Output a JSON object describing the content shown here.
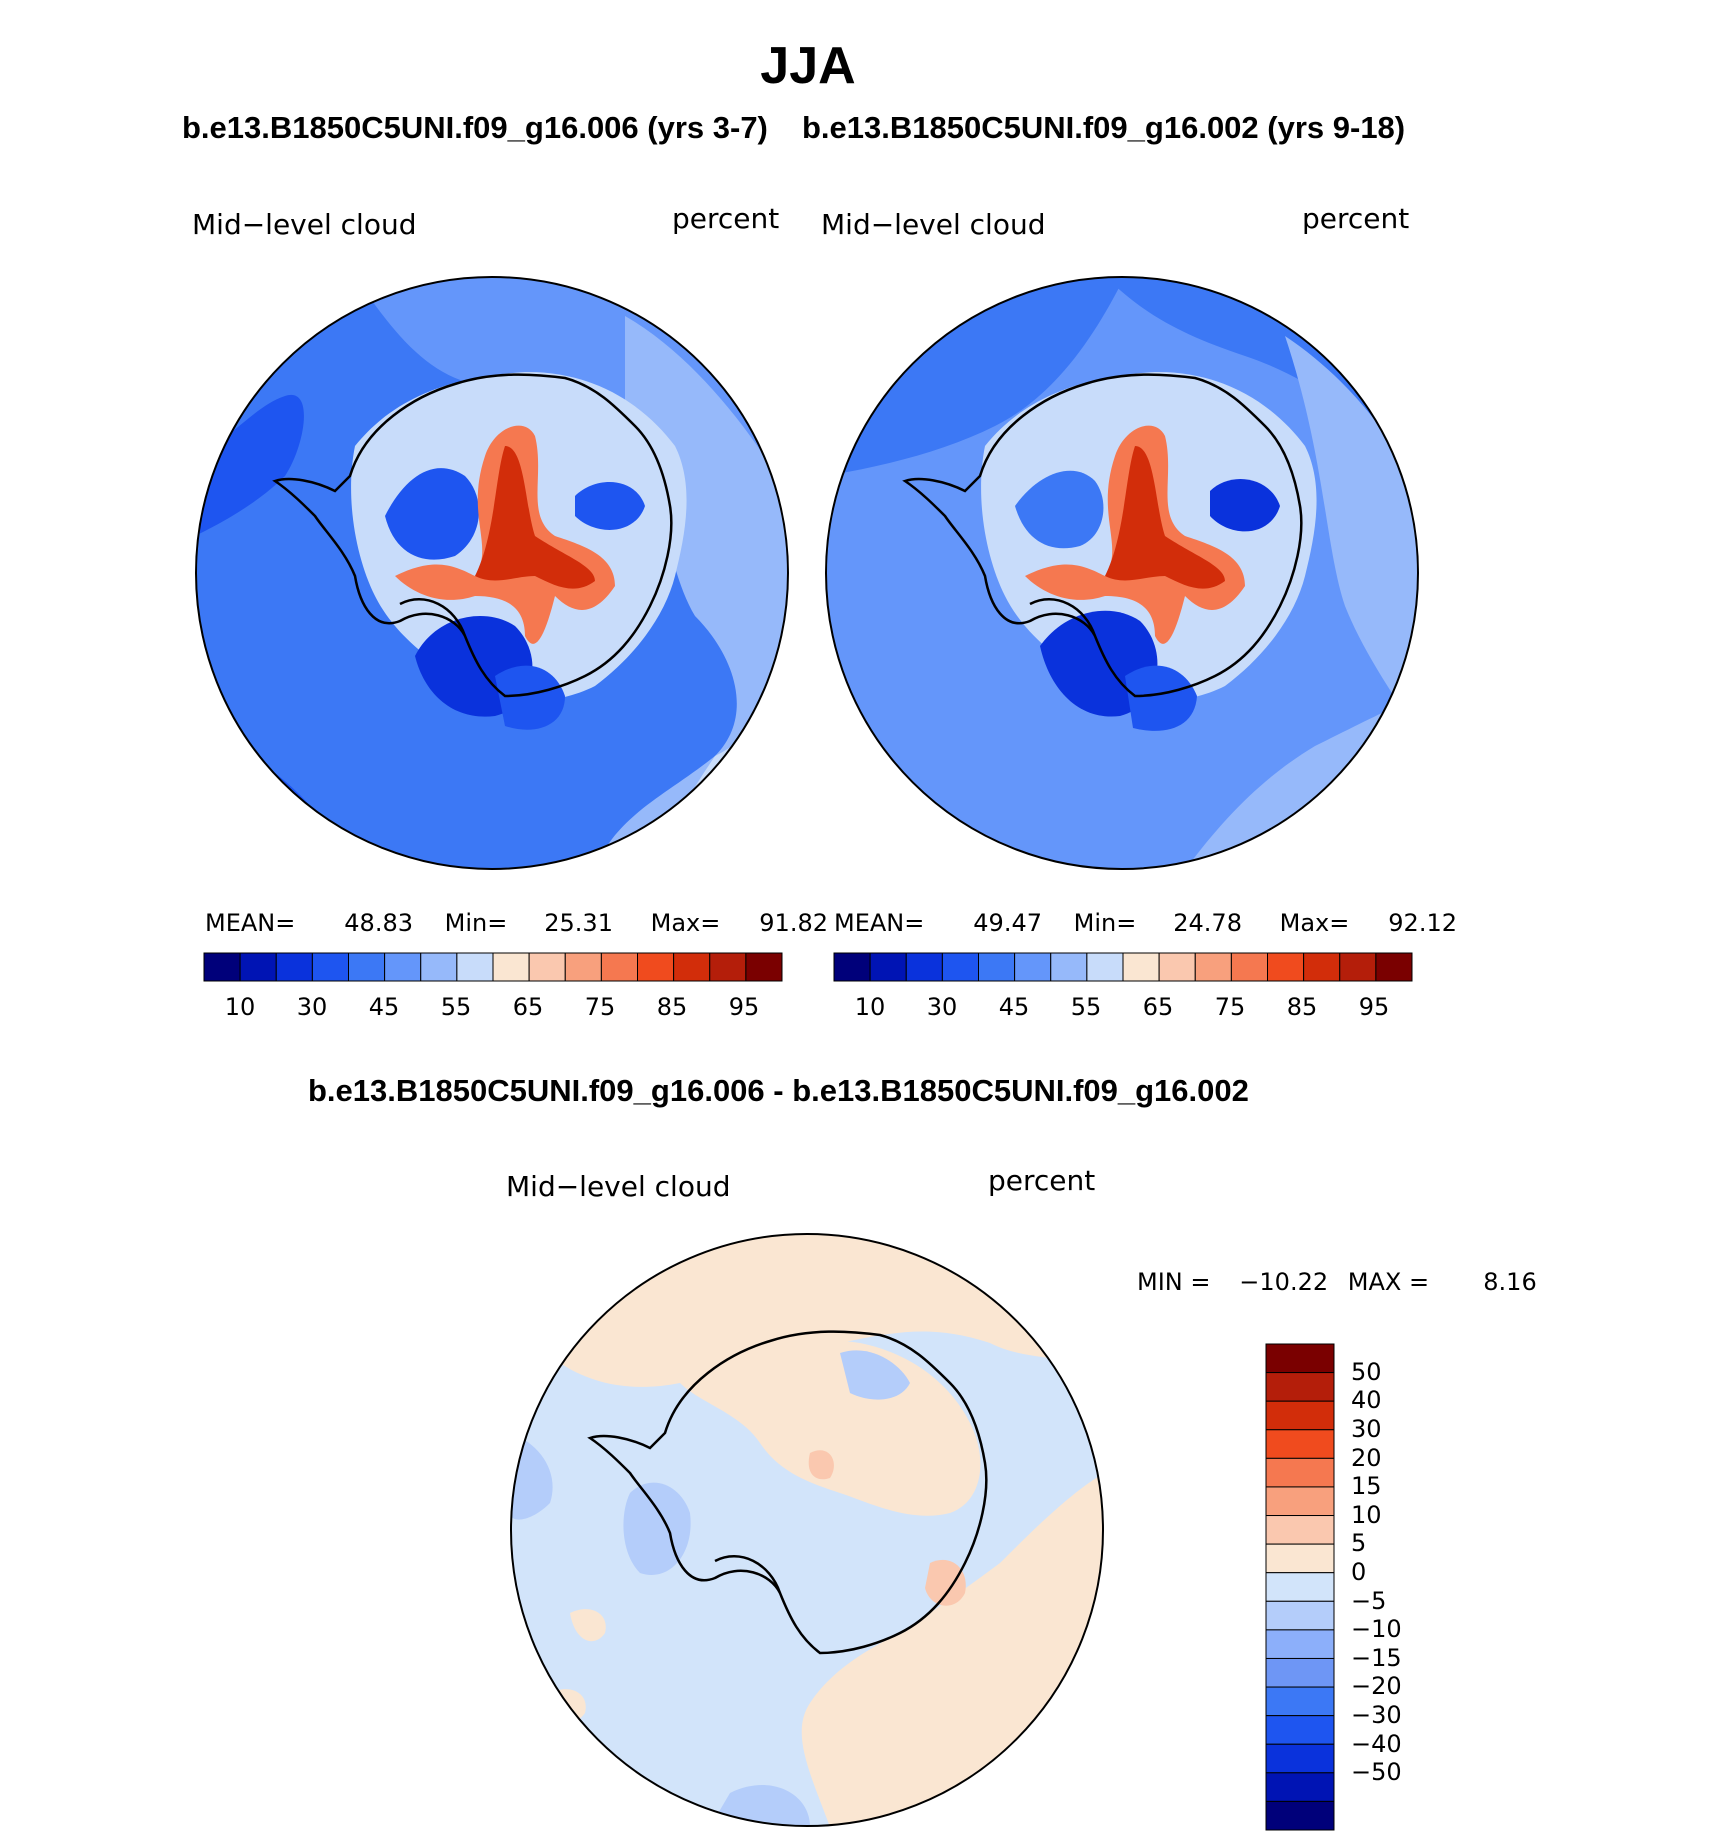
{
  "figure": {
    "title": "JJA",
    "run_title_left": "b.e13.B1850C5UNI.f09_g16.006 (yrs 3-7)",
    "run_title_right": "b.e13.B1850C5UNI.f09_g16.002 (yrs 9-18)",
    "diff_title": "b.e13.B1850C5UNI.f09_g16.006 - b.e13.B1850C5UNI.f09_g16.002"
  },
  "panels": [
    {
      "id": "left",
      "variable": "Mid−level cloud",
      "units": "percent",
      "stats": {
        "mean_label": "MEAN=",
        "mean": "48.83",
        "min_label": "Min=",
        "min": "25.31",
        "max_label": "Max=",
        "max": "91.82"
      }
    },
    {
      "id": "right",
      "variable": "Mid−level cloud",
      "units": "percent",
      "stats": {
        "mean_label": "MEAN=",
        "mean": "49.47",
        "min_label": "Min=",
        "min": "24.78",
        "max_label": "Max=",
        "max": "92.12"
      }
    },
    {
      "id": "diff",
      "variable": "Mid−level cloud",
      "units": "percent",
      "stats": {
        "min_label": "MIN =",
        "min": "−10.22",
        "max_label": "MAX =",
        "max": "8.16"
      }
    }
  ],
  "colorbar_abs": {
    "colors": [
      "#00007a",
      "#0014b4",
      "#0a32dc",
      "#1e55f0",
      "#3c78f5",
      "#6496fa",
      "#96b9fa",
      "#c8dcfa",
      "#fae6d2",
      "#fac8af",
      "#f8a07d",
      "#f57850",
      "#f04b1e",
      "#d22d0a",
      "#b41e0a",
      "#7a0000"
    ],
    "labels": [
      "10",
      "30",
      "45",
      "55",
      "65",
      "75",
      "85",
      "95"
    ]
  },
  "colorbar_diff": {
    "colors": [
      "#7a0000",
      "#b41e0a",
      "#d22d0a",
      "#f04b1e",
      "#f57850",
      "#f8a07d",
      "#fac8af",
      "#fae6d2",
      "#d2e4fa",
      "#b4cdfa",
      "#8caffa",
      "#6e96f5",
      "#3c78f5",
      "#1e55f0",
      "#0a32dc",
      "#0014b4",
      "#00007a"
    ],
    "labels": [
      "50",
      "40",
      "30",
      "20",
      "15",
      "10",
      "5",
      "0",
      "−5",
      "−10",
      "−15",
      "−20",
      "−30",
      "−40",
      "−50"
    ]
  }
}
